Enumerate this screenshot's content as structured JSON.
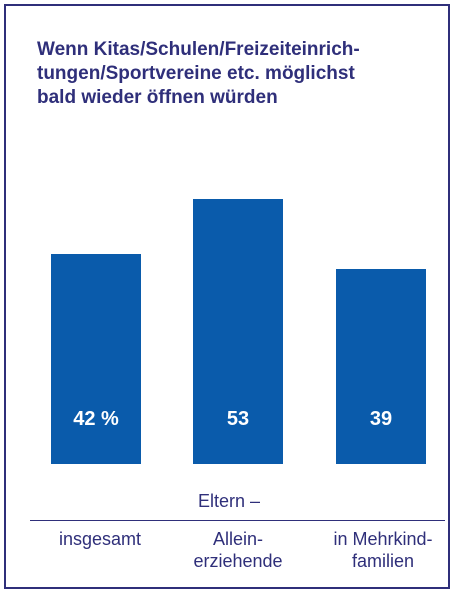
{
  "chart_data": {
    "type": "bar",
    "title_lines": [
      "Wenn Kitas/Schulen/Freizeiteinrich-",
      "tungen/Sportvereine etc. möglichst",
      "bald wieder öffnen würden"
    ],
    "group_label": "Eltern –",
    "categories": [
      {
        "lines": [
          "insgesamt"
        ]
      },
      {
        "lines": [
          "Allein-",
          "erziehende"
        ]
      },
      {
        "lines": [
          "in Mehrkind-",
          "familien"
        ]
      }
    ],
    "values": [
      42,
      53,
      39
    ],
    "value_labels": [
      "42 %",
      "53",
      "39"
    ],
    "unit": "%",
    "bar_color": "#0a5bab",
    "text_color": "#2f2f7a",
    "grid": false,
    "legend": "none"
  }
}
